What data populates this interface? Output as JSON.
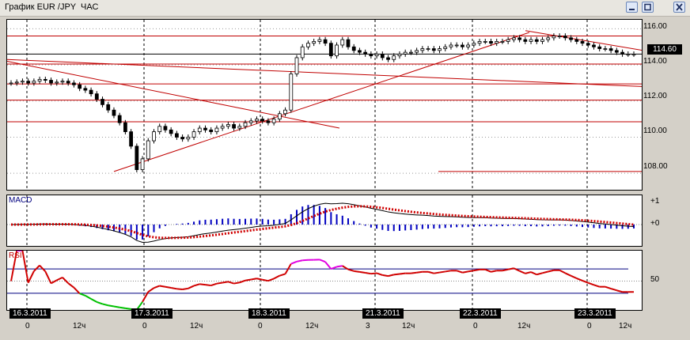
{
  "window": {
    "title": "График EUR /JPY  ЧАС",
    "colors": {
      "bg": "#d4d0c8",
      "panel": "#ffffff",
      "grid": "#000000",
      "support": "#c00000",
      "bull": "#ffffff",
      "bear": "#000000",
      "macd_signal": "#d00000",
      "macd_hist": "#0000c0",
      "rsi_line": "#d00000",
      "rsi_overbought": "#e000e0",
      "rsi_oversold": "#00c000"
    }
  },
  "price_panel": {
    "axis_labels": [
      "116.00",
      "114.00",
      "112.00",
      "110.00",
      "108.00"
    ],
    "current_price": "114.60"
  },
  "macd_panel": {
    "label": "MACD",
    "axis_labels": [
      "+1",
      "+0"
    ]
  },
  "rsi_panel": {
    "label": "RSI",
    "axis_labels": [
      "50"
    ]
  },
  "time_axis": {
    "dates": [
      "16.3.2011",
      "17.3.2011",
      "18.3.2011",
      "21.3.2011",
      "22.3.2011",
      "23.3.2011"
    ],
    "hour_labels": [
      "0",
      "12ч",
      "0",
      "12ч",
      "0",
      "12ч",
      "3",
      "12ч",
      "0",
      "12ч",
      "0",
      "12ч"
    ]
  },
  "chart_data": {
    "type": "candlestick",
    "instrument": "EUR/JPY",
    "timeframe": "ЧАС",
    "ylim": [
      107.0,
      116.5
    ],
    "close": [
      113.0,
      113.05,
      113.1,
      113.0,
      113.1,
      113.2,
      113.15,
      113.0,
      113.05,
      113.1,
      113.0,
      112.9,
      112.7,
      112.6,
      112.4,
      112.1,
      111.8,
      111.5,
      111.2,
      110.8,
      110.3,
      109.5,
      108.2,
      108.8,
      109.8,
      110.3,
      110.6,
      110.4,
      110.2,
      110.0,
      109.9,
      110.0,
      110.3,
      110.5,
      110.4,
      110.3,
      110.5,
      110.6,
      110.7,
      110.5,
      110.6,
      110.8,
      110.9,
      111.0,
      110.9,
      110.8,
      111.0,
      111.3,
      111.5,
      113.5,
      114.4,
      115.0,
      115.2,
      115.3,
      115.4,
      115.2,
      114.5,
      115.1,
      115.4,
      115.0,
      114.8,
      114.7,
      114.6,
      114.5,
      114.6,
      114.4,
      114.3,
      114.5,
      114.6,
      114.7,
      114.7,
      114.8,
      114.9,
      114.9,
      114.8,
      114.9,
      115.0,
      115.1,
      115.1,
      115.0,
      115.1,
      115.2,
      115.3,
      115.3,
      115.2,
      115.3,
      115.3,
      115.4,
      115.5,
      115.4,
      115.3,
      115.4,
      115.3,
      115.4,
      115.5,
      115.6,
      115.6,
      115.5,
      115.4,
      115.3,
      115.2,
      115.1,
      115.0,
      114.9,
      114.9,
      114.8,
      114.7,
      114.6,
      114.6,
      114.6
    ],
    "resistance_levels": [
      115.6,
      114.05,
      112.95,
      112.05,
      110.85,
      108.1
    ]
  }
}
